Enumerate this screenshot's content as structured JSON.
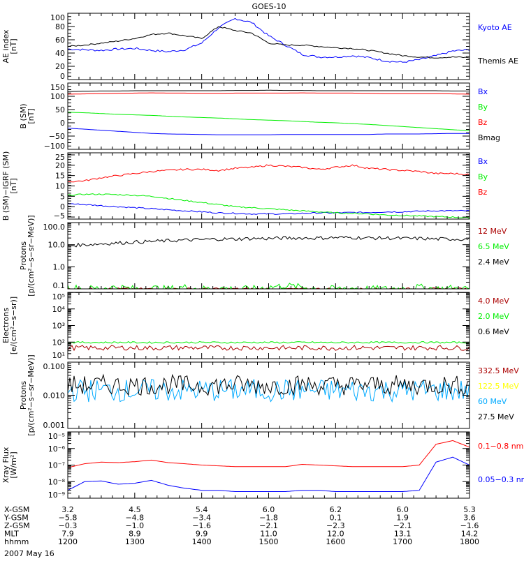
{
  "chart_data": {
    "type": "line",
    "title": "GOES-10",
    "x_range_hhmm": [
      "1200",
      "1800"
    ],
    "x_sample_minutes": 15,
    "panels": [
      {
        "id": "ae",
        "ylabel": [
          "AE index",
          "[nT]"
        ],
        "scale": "linear",
        "ylim": [
          0,
          100
        ],
        "ticks": [
          0,
          20,
          40,
          60,
          80,
          100
        ],
        "ticklabels": [
          "0",
          "20",
          "40",
          "60",
          "80",
          "100"
        ],
        "series": [
          {
            "name": "Kyoto AE",
            "color": "#0000ff",
            "noise": 1.5,
            "values": [
              46,
              45,
              44,
              46,
              47,
              44,
              42,
              45,
              55,
              78,
              92,
              86,
              66,
              52,
              38,
              34,
              34,
              36,
              33,
              28,
              26,
              30,
              36,
              43,
              45
            ]
          },
          {
            "name": "Themis AE",
            "color": "#000000",
            "noise": 1,
            "values": [
              50,
              52,
              55,
              58,
              62,
              68,
              70,
              66,
              62,
              80,
              74,
              70,
              55,
              52,
              52,
              50,
              48,
              47,
              44,
              40,
              36,
              34,
              33,
              34,
              33
            ]
          }
        ]
      },
      {
        "id": "b",
        "ylabel": [
          "B (SM)",
          "[nT]"
        ],
        "scale": "linear",
        "ylim": [
          -100,
          150
        ],
        "ticks": [
          -100,
          -50,
          0,
          50,
          100,
          150
        ],
        "ticklabels": [
          "−100",
          "−50",
          "0",
          "50",
          "100",
          "150"
        ],
        "series": [
          {
            "name": "Bx",
            "color": "#0000ff",
            "noise": 0,
            "values": [
              -20,
              -24,
              -28,
              -32,
              -36,
              -40,
              -42,
              -43,
              -44,
              -45,
              -45,
              -45,
              -45,
              -44,
              -44,
              -44,
              -44,
              -44,
              -44,
              -42,
              -42,
              -42,
              -41,
              -40,
              -40
            ]
          },
          {
            "name": "By",
            "color": "#00ee00",
            "noise": 0,
            "values": [
              40,
              38,
              35,
              32,
              30,
              28,
              25,
              22,
              20,
              18,
              15,
              12,
              10,
              8,
              5,
              2,
              0,
              -3,
              -6,
              -10,
              -14,
              -18,
              -22,
              -26,
              -30
            ]
          },
          {
            "name": "Bz",
            "color": "#ff0000",
            "noise": 0,
            "values": [
              108,
              109,
              110,
              111,
              112,
              113,
              112,
              112,
              111,
              111,
              112,
              112,
              112,
              112,
              113,
              112,
              112,
              112,
              111,
              110,
              110,
              110,
              110,
              109,
              108
            ]
          },
          {
            "name": "Bmag",
            "color": "#000000",
            "noise": 0,
            "values": [
              118,
              119,
              120,
              120,
              121,
              121,
              121,
              121,
              121,
              121,
              122,
              122,
              123,
              122,
              122,
              121,
              121,
              121,
              121,
              121,
              121,
              121,
              121,
              120,
              120
            ]
          }
        ]
      },
      {
        "id": "db",
        "ylabel": [
          "B (SM)−IGRF (SM)",
          "[nT]"
        ],
        "scale": "linear",
        "ylim": [
          -6,
          26
        ],
        "ticks": [
          -5,
          0,
          5,
          10,
          15,
          20,
          25
        ],
        "ticklabels": [
          "−5",
          "0",
          "5",
          "10",
          "15",
          "20",
          "25"
        ],
        "series": [
          {
            "name": "Bx",
            "color": "#0000ff",
            "noise": 0.3,
            "values": [
              1.5,
              1,
              0.5,
              0,
              -0.5,
              -1,
              -1.5,
              -2,
              -2.5,
              -3,
              -3.2,
              -3.5,
              -3.5,
              -3.5,
              -3.2,
              -3,
              -3,
              -2.8,
              -2.8,
              -2.5,
              -2.5,
              -2.2,
              -2,
              -2,
              -2
            ]
          },
          {
            "name": "By",
            "color": "#00ee00",
            "noise": 0.3,
            "values": [
              5.5,
              6,
              6,
              5.8,
              5.5,
              5,
              4,
              3,
              2,
              1,
              0,
              -0.5,
              -1,
              -1.5,
              -2,
              -2.5,
              -3,
              -3.2,
              -3.5,
              -4,
              -4.2,
              -4.5,
              -4.8,
              -5,
              -5.5
            ]
          },
          {
            "name": "Bz",
            "color": "#ff0000",
            "noise": 0.4,
            "values": [
              12,
              12.5,
              14,
              15,
              16,
              17,
              17.5,
              18,
              18,
              17.5,
              18.5,
              19,
              20,
              19.5,
              19,
              18,
              19,
              20,
              18.5,
              18,
              17.5,
              17,
              16,
              16,
              15.5
            ]
          }
        ]
      },
      {
        "id": "p_low",
        "ylabel": [
          "Protons",
          "[p/(cm²−s−sr−MeV)]"
        ],
        "scale": "log",
        "ylim": [
          0.1,
          100
        ],
        "ticks": [
          0.1,
          1,
          10,
          100
        ],
        "ticklabels": [
          "0.1",
          "1.0",
          "10.0",
          "100.0"
        ],
        "series": [
          {
            "name": "12 MeV",
            "color": "#aa0000",
            "noise": 0.05,
            "values": [
              0.1,
              0.1,
              0.1,
              0.1,
              0.1,
              0.1,
              0.1,
              0.1,
              0.1,
              0.1,
              0.1,
              0.1,
              0.1,
              0.1,
              0.1,
              0.1,
              0.1,
              0.1,
              0.1,
              0.1,
              0.1,
              0.1,
              0.1,
              0.1,
              0.1
            ]
          },
          {
            "name": "6.5 MeV",
            "color": "#00ee00",
            "noise": 0.15,
            "values": [
              0.12,
              0.1,
              0.11,
              0.12,
              0.1,
              0.11,
              0.1,
              0.12,
              0.1,
              0.11,
              0.1,
              0.1,
              0.12,
              0.14,
              0.12,
              0.1,
              0.1,
              0.11,
              0.1,
              0.1,
              0.11,
              0.12,
              0.1,
              0.11,
              0.1
            ]
          },
          {
            "name": "2.4 MeV",
            "color": "#000000",
            "noise": 0.08,
            "values": [
              9,
              10,
              11,
              12,
              13,
              14,
              15,
              16,
              17,
              18,
              18,
              19,
              19,
              20,
              20,
              20,
              21,
              21,
              20,
              20,
              19,
              19,
              18,
              18,
              18
            ]
          }
        ]
      },
      {
        "id": "e",
        "ylabel": [
          "Electrons",
          "[e/(cm²−s−sr)]"
        ],
        "scale": "log",
        "ylim": [
          10,
          100000
        ],
        "ticks": [
          10,
          100,
          1000,
          10000,
          100000
        ],
        "ticklabels": [
          "10¹",
          "10²",
          "10³",
          "10⁴",
          "10⁵"
        ],
        "series": [
          {
            "name": "4.0 MeV",
            "color": "#aa0000",
            "noise": 0.15,
            "values": [
              45,
              45,
              44,
              46,
              45,
              44,
              45,
              46,
              45,
              44,
              45,
              46,
              45,
              44,
              45,
              45,
              44,
              46,
              45,
              44,
              45,
              45,
              46,
              45,
              44
            ]
          },
          {
            "name": "2.0 MeV",
            "color": "#00ee00",
            "noise": 0.05,
            "values": [
              95,
              96,
              95,
              96,
              95,
              94,
              96,
              95,
              96,
              95,
              94,
              96,
              95,
              95,
              96,
              95,
              94,
              95,
              96,
              95,
              95,
              96,
              95,
              94,
              95
            ]
          },
          {
            "name": "0.6 MeV",
            "color": "#000000",
            "noise": 0.01,
            "values": [
              98000,
              98000,
              98000,
              98000,
              98000,
              98000,
              98000,
              98000,
              98000,
              98000,
              98000,
              98000,
              98000,
              98000,
              98000,
              98000,
              98000,
              98000,
              98000,
              98000,
              98000,
              98000,
              98000,
              98000,
              95000
            ]
          }
        ]
      },
      {
        "id": "p_high",
        "ylabel": [
          "Protons",
          "[p/(cm²−s−sr−MeV)]"
        ],
        "scale": "log",
        "ylim": [
          0.001,
          0.1
        ],
        "ticks": [
          0.001,
          0.01,
          0.1
        ],
        "ticklabels": [
          "0.001",
          "0.010",
          "0.100"
        ],
        "series": [
          {
            "name": "332.5 MeV",
            "color": "#aa0000",
            "noise": 0,
            "values": []
          },
          {
            "name": "122.5 MeV",
            "color": "#ffff00",
            "noise": 0,
            "values": []
          },
          {
            "name": "60 MeV",
            "color": "#00aaff",
            "noise": 0.35,
            "values": [
              0.014,
              0.014,
              0.014,
              0.014,
              0.014,
              0.014,
              0.014,
              0.014,
              0.014,
              0.014,
              0.014,
              0.014,
              0.014,
              0.014,
              0.014,
              0.014,
              0.014,
              0.014,
              0.014,
              0.014,
              0.014,
              0.014,
              0.014,
              0.014,
              0.014
            ]
          },
          {
            "name": "27.5 MeV",
            "color": "#000000",
            "noise": 0.3,
            "values": [
              0.02,
              0.02,
              0.021,
              0.02,
              0.02,
              0.02,
              0.021,
              0.02,
              0.02,
              0.02,
              0.021,
              0.02,
              0.02,
              0.02,
              0.021,
              0.02,
              0.02,
              0.02,
              0.021,
              0.02,
              0.02,
              0.02,
              0.021,
              0.02,
              0.02
            ]
          }
        ]
      },
      {
        "id": "xray",
        "ylabel": [
          "Xray Flux",
          "[W/m²]"
        ],
        "scale": "log",
        "ylim": [
          1e-09,
          1e-05
        ],
        "ticks": [
          1e-09,
          1e-08,
          1e-07,
          1e-06,
          1e-05
        ],
        "ticklabels": [
          "10⁻⁹",
          "10⁻⁸",
          "10⁻⁷",
          "10⁻⁶",
          "10⁻⁵"
        ],
        "series": [
          {
            "name": "0.1−0.8 nm",
            "color": "#ff0000",
            "noise": 0,
            "values": [
              7e-08,
              1.2e-07,
              1.5e-07,
              1.4e-07,
              1.6e-07,
              2e-07,
              1.4e-07,
              1.2e-07,
              1e-07,
              9e-08,
              8e-08,
              8e-08,
              8e-08,
              8e-08,
              1.1e-07,
              1e-07,
              9e-08,
              8e-08,
              8e-08,
              8e-08,
              8e-08,
              1e-07,
              1.8e-06,
              3e-06,
              1.2e-06
            ]
          },
          {
            "name": "0.05−0.3 nm",
            "color": "#0000ff",
            "noise": 0,
            "values": [
              3e-09,
              1e-08,
              1.1e-08,
              7e-09,
              8e-09,
              1.2e-08,
              6e-09,
              4e-09,
              3e-09,
              3e-09,
              2.5e-09,
              2.5e-09,
              2.5e-09,
              2.5e-09,
              3e-09,
              3e-09,
              2.5e-09,
              2.5e-09,
              2.5e-09,
              2.5e-09,
              2.5e-09,
              3e-09,
              1.5e-07,
              3e-07,
              1e-07
            ]
          }
        ]
      }
    ],
    "xaxis": {
      "rows": [
        {
          "label": "X-GSM",
          "values": [
            "3.2",
            "4.5",
            "5.4",
            "6.0",
            "6.2",
            "6.0",
            "5.3"
          ]
        },
        {
          "label": "Y-GSM",
          "values": [
            "−5.8",
            "−4.8",
            "−3.4",
            "−1.8",
            "0.1",
            "1.9",
            "3.6"
          ]
        },
        {
          "label": "Z-GSM",
          "values": [
            "−0.3",
            "−1.0",
            "−1.6",
            "−2.1",
            "−2.3",
            "−2.1",
            "−1.6"
          ]
        },
        {
          "label": "MLT",
          "values": [
            "7.9",
            "8.9",
            "9.9",
            "11.0",
            "12.0",
            "13.1",
            "14.2"
          ]
        },
        {
          "label": "hhmm",
          "values": [
            "1200",
            "1300",
            "1400",
            "1500",
            "1600",
            "1700",
            "1800"
          ]
        }
      ],
      "date": "2007 May 16"
    }
  }
}
